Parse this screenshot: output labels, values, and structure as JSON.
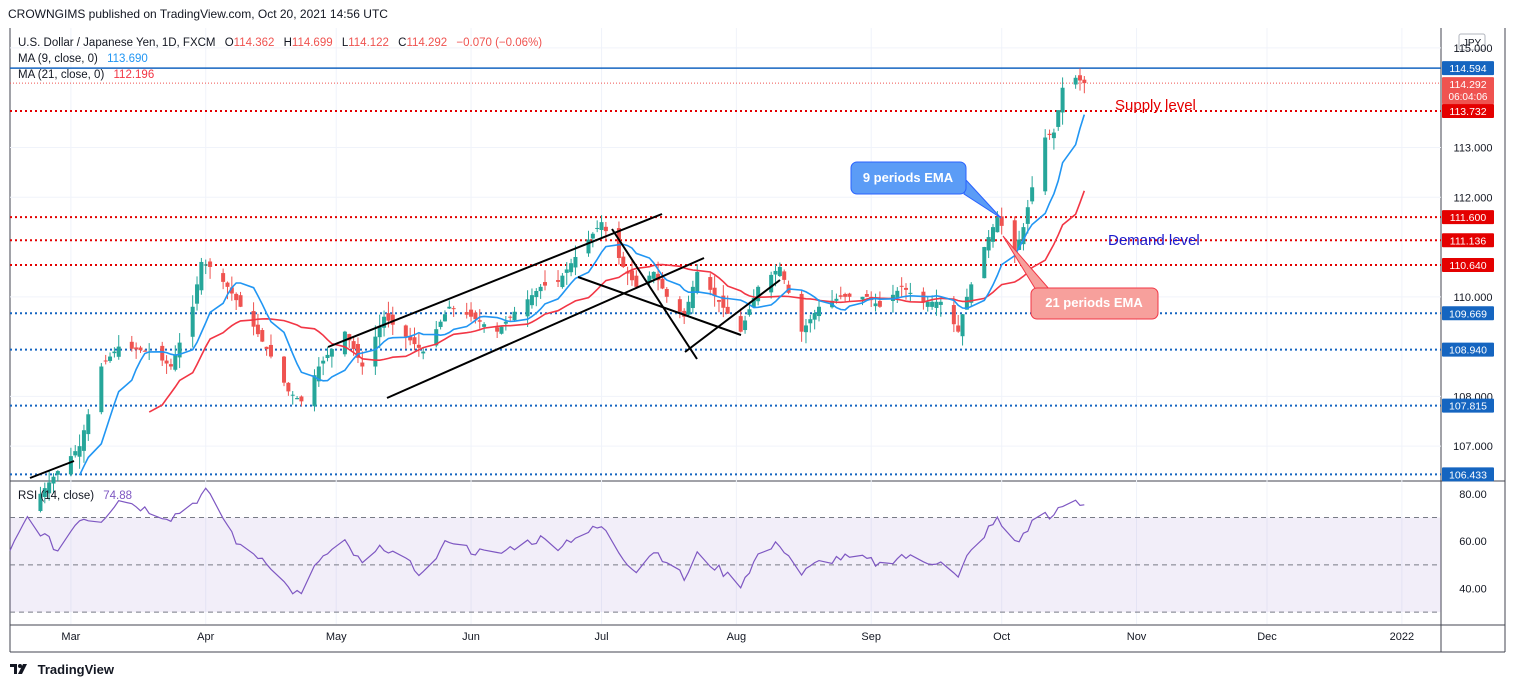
{
  "header": {
    "published": "CROWNGIMS published on TradingView.com, Oct 20, 2021 14:56 UTC"
  },
  "footer": {
    "brand": "TradingView"
  },
  "legend": {
    "symbol": "U.S. Dollar / Japanese Yen, 1D, FXCM",
    "o_label": "O",
    "o": "114.362",
    "h_label": "H",
    "h": "114.699",
    "l_label": "L",
    "l": "114.122",
    "c_label": "C",
    "c": "114.292",
    "change": "−0.070 (−0.06%)",
    "ma9_label": "MA (9, close, 0)",
    "ma9": "113.690",
    "ma21_label": "MA (21, close, 0)",
    "ma21": "112.196",
    "rsi_label": "RSI (14, close)",
    "rsi": "74.88"
  },
  "currency_button": "JPY",
  "price_axis": [
    "115.000",
    "113.000",
    "112.000",
    "110.000",
    "108.000",
    "107.000"
  ],
  "rsi_axis": [
    "80.00",
    "60.00",
    "40.00"
  ],
  "time_axis": [
    "Mar",
    "Apr",
    "May",
    "Jun",
    "Jul",
    "Aug",
    "Sep",
    "Oct",
    "Nov",
    "Dec",
    "2022"
  ],
  "price_tags": {
    "p114594": "114.594",
    "p114292": "114.292",
    "countdown": "06:04:06",
    "p113732": "113.732",
    "p111600": "111.600",
    "p111136": "111.136",
    "p110640": "110.640",
    "p109669": "109.669",
    "p108940": "108.940",
    "p107815": "107.815",
    "p106433": "106.433"
  },
  "annotations": {
    "supply": "Supply level",
    "demand": "Demand level",
    "ema9": "9 periods EMA",
    "ema21": "21 periods EMA"
  },
  "colors": {
    "up": "#26a69a",
    "down": "#ef5350",
    "ma9": "#2196f3",
    "ma21": "#f23645",
    "rsi": "#7e57c2",
    "resistance": "#e40000",
    "support": "#1565c0"
  },
  "chart_data": {
    "type": "candlestick",
    "symbol": "USD/JPY",
    "timeframe": "1D",
    "y_range": [
      106.3,
      115.4
    ],
    "x_range": [
      "2021-02-15",
      "2022-01-10"
    ],
    "horizontal_levels": [
      {
        "value": 114.594,
        "style": "solid",
        "color": "#1565c0"
      },
      {
        "value": 113.732,
        "style": "dotted",
        "color": "#e40000"
      },
      {
        "value": 111.6,
        "style": "dotted",
        "color": "#e40000"
      },
      {
        "value": 111.136,
        "style": "dotted",
        "color": "#e40000"
      },
      {
        "value": 110.64,
        "style": "dotted",
        "color": "#e40000"
      },
      {
        "value": 109.669,
        "style": "dotted",
        "color": "#1565c0"
      },
      {
        "value": 108.94,
        "style": "dotted",
        "color": "#1565c0"
      },
      {
        "value": 107.815,
        "style": "dotted",
        "color": "#1565c0"
      },
      {
        "value": 106.433,
        "style": "dotted",
        "color": "#1565c0"
      }
    ],
    "close_anchors": [
      [
        "2021-02-19",
        105.7
      ],
      [
        "2021-02-26",
        106.5
      ],
      [
        "2021-03-03",
        107.0
      ],
      [
        "2021-03-08",
        108.6
      ],
      [
        "2021-03-12",
        109.0
      ],
      [
        "2021-03-19",
        108.9
      ],
      [
        "2021-03-24",
        108.6
      ],
      [
        "2021-03-29",
        109.8
      ],
      [
        "2021-03-31",
        110.7
      ],
      [
        "2021-04-02",
        110.6
      ],
      [
        "2021-04-06",
        110.2
      ],
      [
        "2021-04-12",
        109.4
      ],
      [
        "2021-04-16",
        108.8
      ],
      [
        "2021-04-20",
        108.1
      ],
      [
        "2021-04-23",
        107.9
      ],
      [
        "2021-04-27",
        108.6
      ],
      [
        "2021-05-03",
        109.3
      ],
      [
        "2021-05-07",
        108.6
      ],
      [
        "2021-05-12",
        109.6
      ],
      [
        "2021-05-17",
        109.2
      ],
      [
        "2021-05-21",
        108.9
      ],
      [
        "2021-05-27",
        109.8
      ],
      [
        "2021-06-01",
        109.6
      ],
      [
        "2021-06-07",
        109.3
      ],
      [
        "2021-06-11",
        109.7
      ],
      [
        "2021-06-17",
        110.2
      ],
      [
        "2021-06-21",
        110.3
      ],
      [
        "2021-06-25",
        110.8
      ],
      [
        "2021-07-01",
        111.5
      ],
      [
        "2021-07-06",
        110.6
      ],
      [
        "2021-07-09",
        110.2
      ],
      [
        "2021-07-13",
        110.5
      ],
      [
        "2021-07-16",
        110.0
      ],
      [
        "2021-07-20",
        109.6
      ],
      [
        "2021-07-23",
        110.5
      ],
      [
        "2021-07-28",
        109.9
      ],
      [
        "2021-08-02",
        109.3
      ],
      [
        "2021-08-06",
        110.2
      ],
      [
        "2021-08-11",
        110.6
      ],
      [
        "2021-08-16",
        109.3
      ],
      [
        "2021-08-20",
        109.8
      ],
      [
        "2021-08-25",
        110.0
      ],
      [
        "2021-08-31",
        110.0
      ],
      [
        "2021-09-03",
        109.8
      ],
      [
        "2021-09-08",
        110.2
      ],
      [
        "2021-09-13",
        109.9
      ],
      [
        "2021-09-17",
        109.9
      ],
      [
        "2021-09-21",
        109.3
      ],
      [
        "2021-09-23",
        110.0
      ],
      [
        "2021-09-27",
        111.0
      ],
      [
        "2021-09-30",
        111.6
      ],
      [
        "2021-10-04",
        110.9
      ],
      [
        "2021-10-06",
        111.4
      ],
      [
        "2021-10-08",
        112.2
      ],
      [
        "2021-10-11",
        113.2
      ],
      [
        "2021-10-13",
        113.3
      ],
      [
        "2021-10-15",
        114.2
      ],
      [
        "2021-10-18",
        114.4
      ],
      [
        "2021-10-20",
        114.292
      ]
    ],
    "rsi": {
      "name": "RSI (14, close)",
      "y_range": [
        25,
        85
      ],
      "bands": [
        30,
        50,
        70
      ],
      "last": 74.88,
      "anchors": [
        [
          "2021-02-15",
          55
        ],
        [
          "2021-02-19",
          70
        ],
        [
          "2021-02-26",
          56
        ],
        [
          "2021-03-03",
          70
        ],
        [
          "2021-03-08",
          69
        ],
        [
          "2021-03-12",
          78
        ],
        [
          "2021-03-19",
          73
        ],
        [
          "2021-03-24",
          70
        ],
        [
          "2021-03-29",
          76
        ],
        [
          "2021-04-01",
          81
        ],
        [
          "2021-04-05",
          70
        ],
        [
          "2021-04-09",
          57
        ],
        [
          "2021-04-15",
          52
        ],
        [
          "2021-04-20",
          40
        ],
        [
          "2021-04-23",
          37
        ],
        [
          "2021-04-27",
          52
        ],
        [
          "2021-05-03",
          59
        ],
        [
          "2021-05-07",
          50
        ],
        [
          "2021-05-12",
          58
        ],
        [
          "2021-05-17",
          51
        ],
        [
          "2021-05-21",
          46
        ],
        [
          "2021-05-27",
          61
        ],
        [
          "2021-06-01",
          56
        ],
        [
          "2021-06-07",
          54
        ],
        [
          "2021-06-11",
          58
        ],
        [
          "2021-06-17",
          61
        ],
        [
          "2021-06-21",
          58
        ],
        [
          "2021-06-25",
          62
        ],
        [
          "2021-07-01",
          66
        ],
        [
          "2021-07-06",
          53
        ],
        [
          "2021-07-09",
          48
        ],
        [
          "2021-07-13",
          56
        ],
        [
          "2021-07-16",
          52
        ],
        [
          "2021-07-20",
          44
        ],
        [
          "2021-07-23",
          54
        ],
        [
          "2021-07-28",
          48
        ],
        [
          "2021-08-02",
          42
        ],
        [
          "2021-08-06",
          54
        ],
        [
          "2021-08-11",
          59
        ],
        [
          "2021-08-16",
          46
        ],
        [
          "2021-08-20",
          51
        ],
        [
          "2021-08-25",
          53
        ],
        [
          "2021-08-31",
          52
        ],
        [
          "2021-09-03",
          50
        ],
        [
          "2021-09-08",
          54
        ],
        [
          "2021-09-13",
          51
        ],
        [
          "2021-09-17",
          52
        ],
        [
          "2021-09-21",
          44
        ],
        [
          "2021-09-23",
          53
        ],
        [
          "2021-09-27",
          63
        ],
        [
          "2021-09-30",
          69
        ],
        [
          "2021-10-04",
          60
        ],
        [
          "2021-10-06",
          62
        ],
        [
          "2021-10-08",
          68
        ],
        [
          "2021-10-11",
          72
        ],
        [
          "2021-10-13",
          70
        ],
        [
          "2021-10-15",
          75
        ],
        [
          "2021-10-18",
          76
        ],
        [
          "2021-10-20",
          74.88
        ]
      ]
    }
  }
}
